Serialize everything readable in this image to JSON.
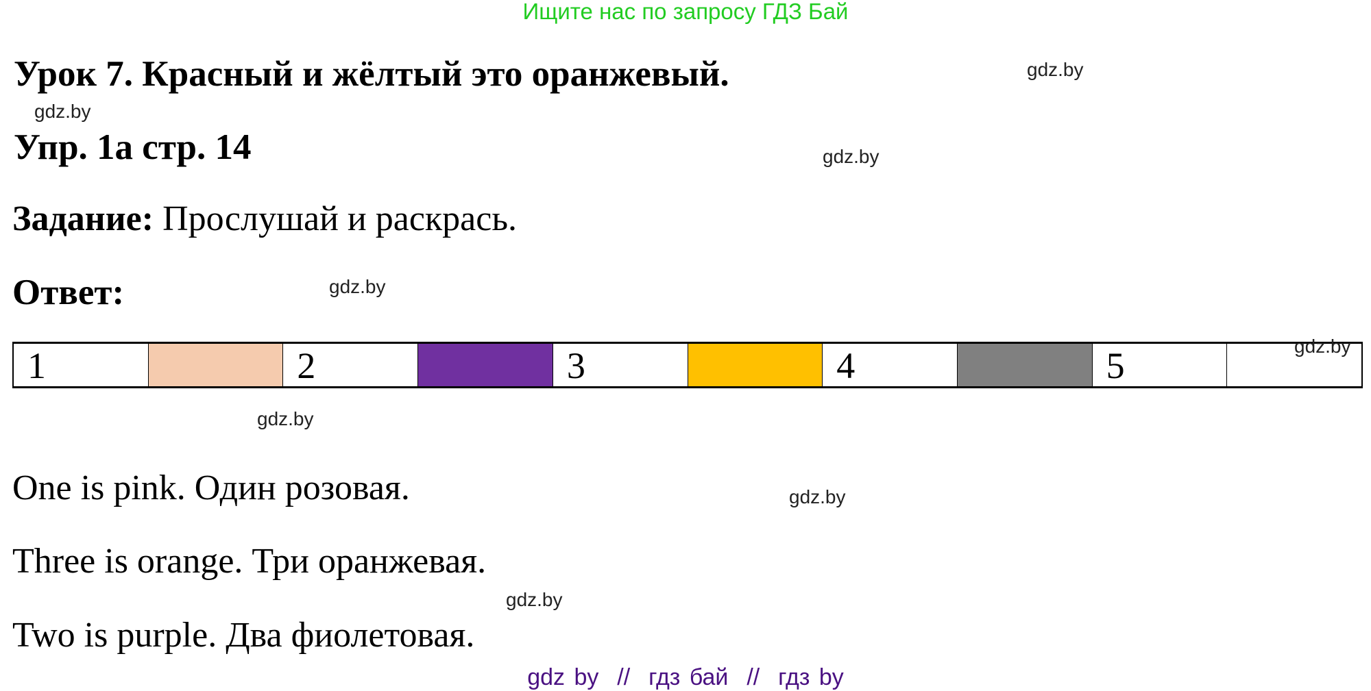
{
  "banner": "Ищите нас по запросу ГДЗ Бай",
  "title": "Урок 7. Красный и жёлтый это оранжевый.",
  "exercise": "Упр. 1а стр. 14",
  "task": {
    "label": "Задание:",
    "text": " Прослушай и раскрась."
  },
  "answer_label": "Ответ:",
  "strip": [
    {
      "label": "1",
      "color": "#ffffff"
    },
    {
      "label": "",
      "color": "#f5cbae"
    },
    {
      "label": "2",
      "color": "#ffffff"
    },
    {
      "label": "",
      "color": "#7030a0"
    },
    {
      "label": "3",
      "color": "#ffffff"
    },
    {
      "label": "",
      "color": "#ffc000"
    },
    {
      "label": "4",
      "color": "#ffffff"
    },
    {
      "label": "",
      "color": "#808080"
    },
    {
      "label": "5",
      "color": "#ffffff"
    },
    {
      "label": "",
      "color": "#ffffff"
    }
  ],
  "sentences": [
    "One is pink. Один розовая.",
    "Three is orange. Три оранжевая.",
    "Two is purple. Два фиолетовая."
  ],
  "watermark": "gdz.by",
  "footer": "gdz by  //  гдз бай  //  гдз by"
}
